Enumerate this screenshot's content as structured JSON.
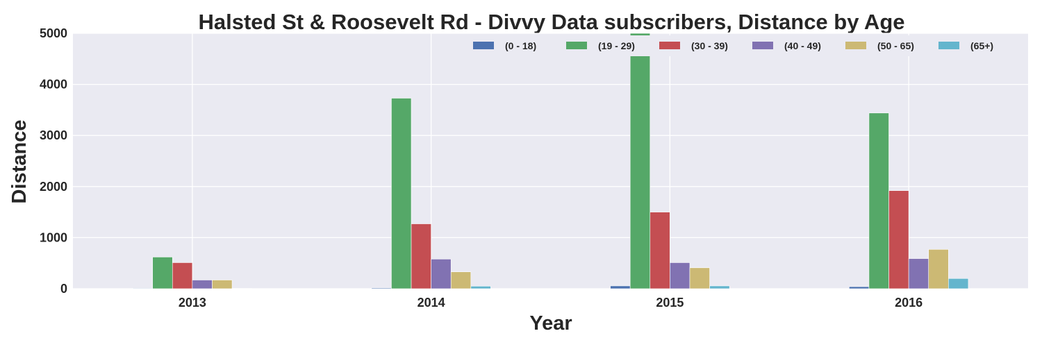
{
  "chart_data": {
    "type": "bar",
    "title": "Halsted St & Roosevelt Rd - Divvy Data subscribers, Distance by Age",
    "xlabel": "Year",
    "ylabel": "Distance",
    "categories": [
      "2013",
      "2014",
      "2015",
      "2016"
    ],
    "ylim": [
      0,
      5000
    ],
    "yticks": [
      0,
      1000,
      2000,
      3000,
      4000,
      5000
    ],
    "grid": true,
    "legend_position": "top-right",
    "series": [
      {
        "name": "(0 - 18)",
        "color": "#4C72B0",
        "values": [
          10,
          15,
          55,
          40
        ]
      },
      {
        "name": "(19 - 29)",
        "color": "#55A868",
        "values": [
          620,
          3730,
          5000,
          3440
        ]
      },
      {
        "name": "(30 - 39)",
        "color": "#C44E52",
        "values": [
          510,
          1270,
          1500,
          1920
        ]
      },
      {
        "name": "(40 - 49)",
        "color": "#8172B2",
        "values": [
          170,
          580,
          510,
          590
        ]
      },
      {
        "name": "(50 - 65)",
        "color": "#CCB974",
        "values": [
          170,
          330,
          410,
          770
        ]
      },
      {
        "name": "(65+)",
        "color": "#64B5CD",
        "values": [
          5,
          50,
          55,
          200
        ]
      }
    ]
  }
}
